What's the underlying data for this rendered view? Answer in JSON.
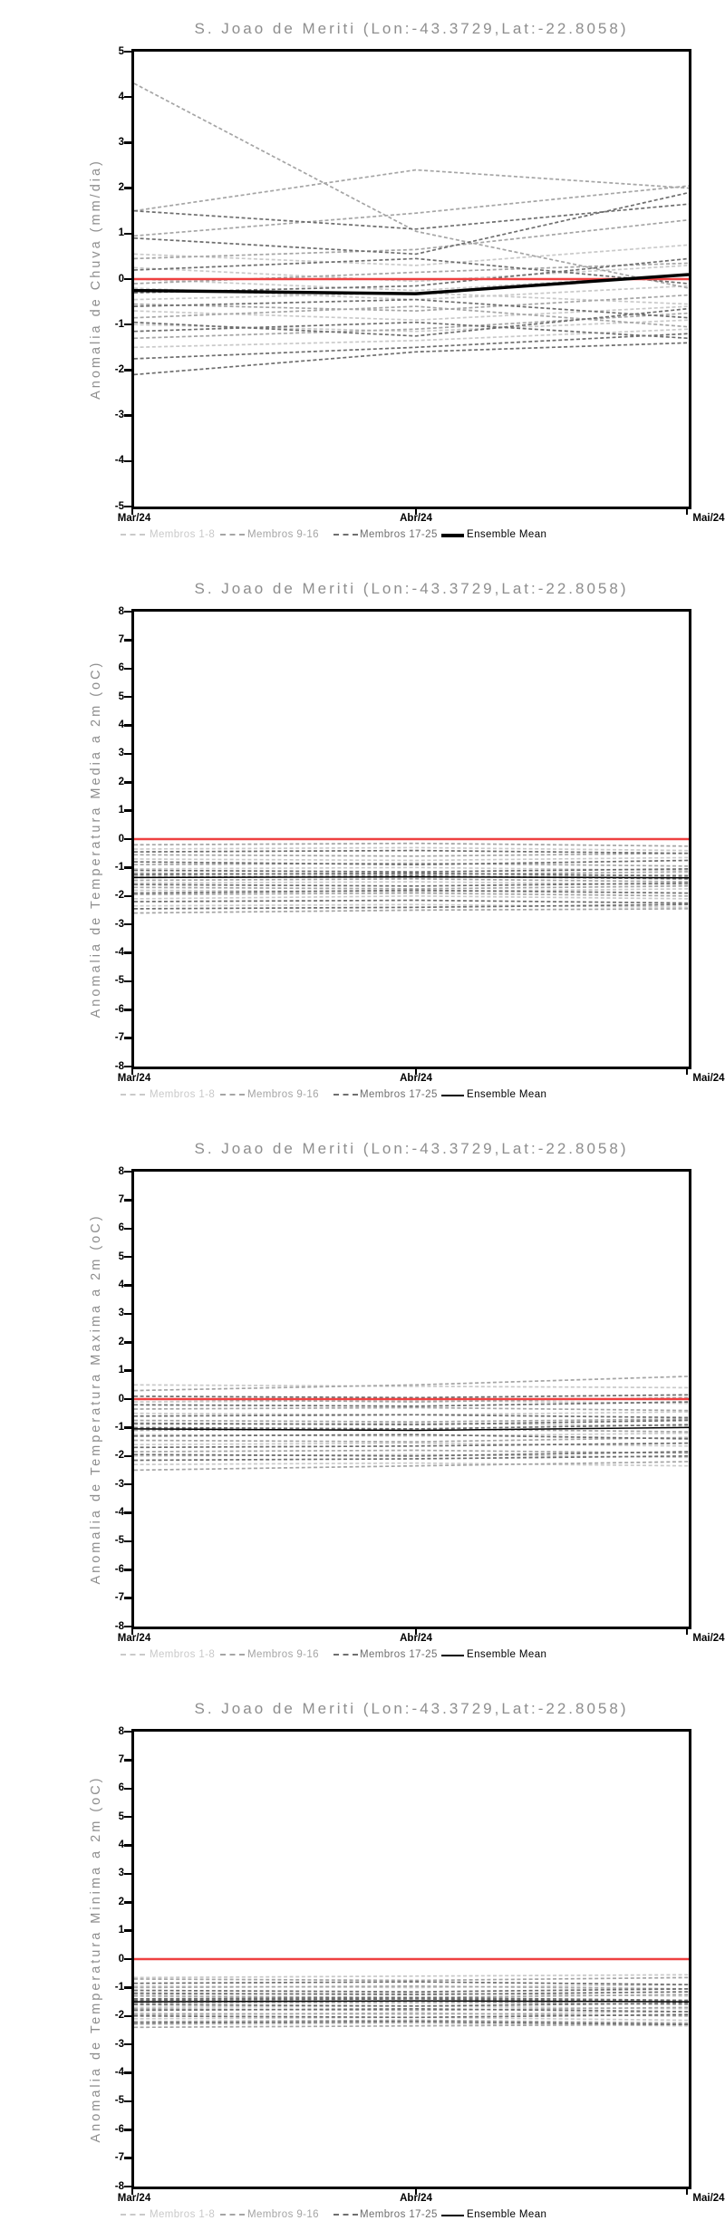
{
  "chart_data": [
    {
      "type": "line",
      "title": "S. Joao de Meriti (Lon:-43.3729,Lat:-22.8058)",
      "ylabel": "Anomalia de Chuva (mm/dia)",
      "xlabel": "",
      "x_categories": [
        "Mar/24",
        "Abr/24",
        "Mai/24"
      ],
      "ylim": [
        -5,
        5
      ],
      "ytick_step": 1,
      "grid": false,
      "legend_position": "bottom",
      "reference_line_y": 0,
      "colors": {
        "reference": "#ee4141",
        "mean": "#000000"
      },
      "groups": [
        {
          "label": "Membros 1-8",
          "color": "#c9c9c9",
          "line_style": "dashed",
          "members": [
            [
              0.55,
              0.3,
              0.75
            ],
            [
              0.25,
              -0.05,
              0.3
            ],
            [
              0.0,
              -0.25,
              0.1
            ],
            [
              -0.2,
              -0.45,
              -0.15
            ],
            [
              -0.45,
              -0.3,
              -0.55
            ],
            [
              -0.7,
              -0.9,
              -0.6
            ],
            [
              -1.0,
              -1.15,
              -0.9
            ],
            [
              -1.5,
              -1.35,
              -1.1
            ]
          ]
        },
        {
          "label": "Membros 9-16",
          "color": "#a5a5a5",
          "line_style": "dashed",
          "members": [
            [
              4.3,
              1.05,
              -0.2
            ],
            [
              1.5,
              2.4,
              2.0
            ],
            [
              0.95,
              1.45,
              2.05
            ],
            [
              0.45,
              0.65,
              1.3
            ],
            [
              -0.1,
              0.15,
              0.35
            ],
            [
              -0.55,
              -0.7,
              -0.35
            ],
            [
              -0.85,
              -0.6,
              -1.05
            ],
            [
              -1.3,
              -1.1,
              -0.75
            ]
          ]
        },
        {
          "label": "Membros 17-25",
          "color": "#6e6e6e",
          "line_style": "dashed",
          "members": [
            [
              1.5,
              1.1,
              1.65
            ],
            [
              0.9,
              0.55,
              1.9
            ],
            [
              0.2,
              0.45,
              -0.1
            ],
            [
              -0.3,
              -0.15,
              0.45
            ],
            [
              -0.6,
              -0.45,
              -0.85
            ],
            [
              -0.95,
              -1.25,
              -0.65
            ],
            [
              -1.15,
              -0.95,
              -1.3
            ],
            [
              -1.75,
              -1.5,
              -1.2
            ],
            [
              -2.1,
              -1.6,
              -1.4
            ]
          ]
        }
      ],
      "ensemble_mean": {
        "label": "Ensemble Mean",
        "values": [
          -0.25,
          -0.32,
          0.1
        ],
        "width": 3.5
      }
    },
    {
      "type": "line",
      "title": "S. Joao de Meriti (Lon:-43.3729,Lat:-22.8058)",
      "ylabel": "Anomalia de Temperatura Media a 2m (oC)",
      "xlabel": "",
      "x_categories": [
        "Mar/24",
        "Abr/24",
        "Mai/24"
      ],
      "ylim": [
        -8,
        8
      ],
      "ytick_step": 1,
      "grid": false,
      "legend_position": "bottom",
      "reference_line_y": 0,
      "colors": {
        "reference": "#ee4141",
        "mean": "#000000"
      },
      "groups": [
        {
          "label": "Membros 1-8",
          "color": "#c9c9c9",
          "line_style": "dashed",
          "members": [
            [
              -0.35,
              -0.3,
              -0.4
            ],
            [
              -0.7,
              -0.75,
              -0.65
            ],
            [
              -1.05,
              -1.0,
              -1.1
            ],
            [
              -1.3,
              -1.35,
              -1.25
            ],
            [
              -1.55,
              -1.5,
              -1.6
            ],
            [
              -1.8,
              -1.85,
              -1.75
            ],
            [
              -2.1,
              -2.0,
              -2.1
            ],
            [
              -2.35,
              -2.3,
              -2.4
            ]
          ]
        },
        {
          "label": "Membros 9-16",
          "color": "#a5a5a5",
          "line_style": "dashed",
          "members": [
            [
              -0.2,
              -0.15,
              -0.25
            ],
            [
              -0.55,
              -0.6,
              -0.5
            ],
            [
              -0.9,
              -0.85,
              -0.95
            ],
            [
              -1.2,
              -1.25,
              -1.15
            ],
            [
              -1.45,
              -1.4,
              -1.5
            ],
            [
              -1.7,
              -1.75,
              -1.65
            ],
            [
              -1.95,
              -1.9,
              -2.0
            ],
            [
              -2.6,
              -2.5,
              -2.45
            ]
          ]
        },
        {
          "label": "Membros 17-25",
          "color": "#6e6e6e",
          "line_style": "dashed",
          "members": [
            [
              -0.45,
              -0.4,
              -0.5
            ],
            [
              -0.8,
              -0.9,
              -0.75
            ],
            [
              -1.1,
              -1.15,
              -1.05
            ],
            [
              -1.35,
              -1.3,
              -1.4
            ],
            [
              -1.6,
              -1.65,
              -1.55
            ],
            [
              -1.9,
              -1.8,
              -1.9
            ],
            [
              -2.2,
              -2.15,
              -2.25
            ],
            [
              -2.45,
              -2.4,
              -2.3
            ],
            [
              -1.25,
              -1.2,
              -1.3
            ]
          ]
        }
      ],
      "ensemble_mean": {
        "label": "Ensemble Mean",
        "values": [
          -1.35,
          -1.33,
          -1.36
        ],
        "width": 1.5
      }
    },
    {
      "type": "line",
      "title": "S. Joao de Meriti (Lon:-43.3729,Lat:-22.8058)",
      "ylabel": "Anomalia de Temperatura Maxima a 2m (oC)",
      "xlabel": "",
      "x_categories": [
        "Mar/24",
        "Abr/24",
        "Mai/24"
      ],
      "ylim": [
        -8,
        8
      ],
      "ytick_step": 1,
      "grid": false,
      "legend_position": "bottom",
      "reference_line_y": 0,
      "colors": {
        "reference": "#ee4141",
        "mean": "#000000"
      },
      "groups": [
        {
          "label": "Membros 1-8",
          "color": "#c9c9c9",
          "line_style": "dashed",
          "members": [
            [
              0.5,
              0.45,
              0.4
            ],
            [
              -0.1,
              -0.05,
              -0.15
            ],
            [
              -0.5,
              -0.55,
              -0.45
            ],
            [
              -0.9,
              -0.85,
              -0.95
            ],
            [
              -1.25,
              -1.3,
              -1.2
            ],
            [
              -1.6,
              -1.55,
              -1.65
            ],
            [
              -2.0,
              -1.95,
              -2.05
            ],
            [
              -2.3,
              -2.25,
              -2.35
            ]
          ]
        },
        {
          "label": "Membros 9-16",
          "color": "#a5a5a5",
          "line_style": "dashed",
          "members": [
            [
              0.3,
              0.5,
              0.8
            ],
            [
              0.0,
              -0.1,
              0.05
            ],
            [
              -0.35,
              -0.3,
              -0.4
            ],
            [
              -0.75,
              -0.8,
              -0.7
            ],
            [
              -1.1,
              -1.05,
              -1.15
            ],
            [
              -1.45,
              -1.5,
              -1.35
            ],
            [
              -1.85,
              -1.8,
              -1.9
            ],
            [
              -2.5,
              -2.35,
              -2.2
            ]
          ]
        },
        {
          "label": "Membros 17-25",
          "color": "#6e6e6e",
          "line_style": "dashed",
          "members": [
            [
              0.1,
              0.05,
              0.15
            ],
            [
              -0.2,
              -0.25,
              -0.1
            ],
            [
              -0.6,
              -0.55,
              -0.65
            ],
            [
              -1.0,
              -1.05,
              -0.9
            ],
            [
              -1.3,
              -1.25,
              -1.4
            ],
            [
              -1.7,
              -1.65,
              -1.55
            ],
            [
              -1.95,
              -2.0,
              -1.85
            ],
            [
              -2.15,
              -2.1,
              -2.0
            ],
            [
              -0.85,
              -0.9,
              -0.75
            ]
          ]
        }
      ],
      "ensemble_mean": {
        "label": "Ensemble Mean",
        "values": [
          -1.05,
          -1.1,
          -1.0
        ],
        "width": 1.5
      }
    },
    {
      "type": "line",
      "title": "S. Joao de Meriti (Lon:-43.3729,Lat:-22.8058)",
      "ylabel": "Anomalia de Temperatura Minima a 2m (oC)",
      "xlabel": "",
      "x_categories": [
        "Mar/24",
        "Abr/24",
        "Mai/24"
      ],
      "ylim": [
        -8,
        8
      ],
      "ytick_step": 1,
      "grid": false,
      "legend_position": "bottom",
      "reference_line_y": 0,
      "colors": {
        "reference": "#ee4141",
        "mean": "#000000"
      },
      "groups": [
        {
          "label": "Membros 1-8",
          "color": "#c9c9c9",
          "line_style": "dashed",
          "members": [
            [
              -0.65,
              -0.6,
              -0.55
            ],
            [
              -0.95,
              -1.0,
              -0.9
            ],
            [
              -1.25,
              -1.2,
              -1.3
            ],
            [
              -1.5,
              -1.55,
              -1.45
            ],
            [
              -1.7,
              -1.65,
              -1.75
            ],
            [
              -1.9,
              -1.95,
              -1.85
            ],
            [
              -2.1,
              -2.05,
              -2.15
            ],
            [
              -2.3,
              -2.25,
              -2.35
            ]
          ]
        },
        {
          "label": "Membros 9-16",
          "color": "#a5a5a5",
          "line_style": "dashed",
          "members": [
            [
              -0.7,
              -0.75,
              -0.65
            ],
            [
              -1.0,
              -0.95,
              -1.05
            ],
            [
              -1.3,
              -1.35,
              -1.25
            ],
            [
              -1.55,
              -1.5,
              -1.6
            ],
            [
              -1.75,
              -1.8,
              -1.7
            ],
            [
              -1.95,
              -1.9,
              -2.0
            ],
            [
              -2.2,
              -2.15,
              -2.25
            ],
            [
              -2.4,
              -2.35,
              -2.3
            ]
          ]
        },
        {
          "label": "Membros 17-25",
          "color": "#6e6e6e",
          "line_style": "dashed",
          "members": [
            [
              -0.85,
              -0.8,
              -0.9
            ],
            [
              -1.1,
              -1.15,
              -1.05
            ],
            [
              -1.4,
              -1.35,
              -1.45
            ],
            [
              -1.6,
              -1.65,
              -1.55
            ],
            [
              -1.8,
              -1.75,
              -1.85
            ],
            [
              -2.0,
              -2.05,
              -1.95
            ],
            [
              -2.25,
              -2.2,
              -2.3
            ],
            [
              -1.45,
              -1.4,
              -1.5
            ],
            [
              -1.2,
              -1.25,
              -1.15
            ]
          ]
        }
      ],
      "ensemble_mean": {
        "label": "Ensemble Mean",
        "values": [
          -1.5,
          -1.47,
          -1.5
        ],
        "width": 1.5
      }
    }
  ]
}
